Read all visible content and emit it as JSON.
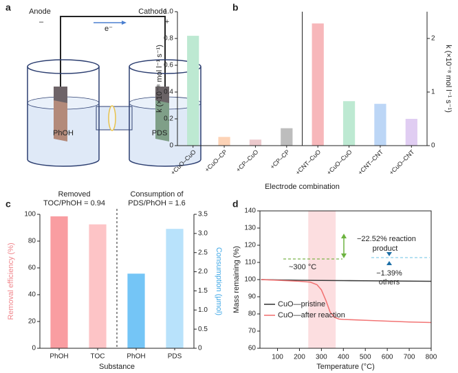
{
  "panels": [
    "a",
    "b",
    "c",
    "d"
  ],
  "diagram": {
    "anode": "Anode",
    "anode_sign": "–",
    "cathode": "Cathode",
    "cathode_sign": "+",
    "electron": "e⁻",
    "left_cell": "PhOH",
    "right_cell": "PDS"
  },
  "chart_data": [
    {
      "type": "bar",
      "ylabel": "k (×10⁻⁸ mol l⁻¹ s⁻¹)",
      "y2label": "k (×10⁻⁸ mol l⁻¹ s⁻¹)",
      "xlabel": "Electrode combination",
      "categories": [
        "+CuO–CuO",
        "+CuO–CP",
        "+CP–CuO",
        "+CP–CP",
        "+CNT–CuO",
        "+CuO–CuO",
        "+CNT–CNT",
        "+CuO–CNT"
      ],
      "series": [
        {
          "colors": [
            "#bde9d2",
            "#fdd3b6",
            "#ecc9cc",
            "#bdbdbd",
            null,
            null,
            null,
            null
          ],
          "values": [
            0.82,
            0.065,
            0.045,
            0.13,
            null,
            null,
            null,
            null
          ]
        },
        {
          "axis": "y2",
          "colors": [
            null,
            null,
            null,
            null,
            "#f7b7ba",
            "#bde9d2",
            "#bcd6f6",
            "#e0cdf2"
          ],
          "values": [
            null,
            null,
            null,
            null,
            2.28,
            0.83,
            0.78,
            0.5
          ]
        }
      ],
      "ylim": [
        0,
        1.0
      ],
      "yticks": [
        0,
        0.2,
        0.4,
        0.6,
        0.8,
        {
          "value": 1.0,
          "label": "1.0"
        }
      ],
      "y2lim": [
        0,
        2.5
      ],
      "y2ticks": [
        0,
        1,
        2
      ]
    },
    {
      "type": "bar",
      "annotations": [
        [
          "Removed",
          "TOC/PhOH = 0.94"
        ],
        [
          "Consumption of",
          "PDS/PhOH = 1.6"
        ]
      ],
      "ylabel": "Removal efficiency (%)",
      "ylabel_color": "#f0868c",
      "y2label": "Consumption (μmol)",
      "y2label_color": "#3ea7e6",
      "xlabel": "Substance",
      "categories": [
        "PhOH",
        "TOC",
        "PhOH",
        "PDS"
      ],
      "series": [
        {
          "colors": [
            "#f99da1",
            "#fdc4c6",
            null,
            null
          ],
          "values": [
            98.5,
            92.5,
            null,
            null
          ]
        },
        {
          "axis": "y2",
          "colors": [
            null,
            null,
            "#74c5f6",
            "#b8e2fb"
          ],
          "values": [
            null,
            null,
            1.95,
            3.12
          ]
        }
      ],
      "ylim": [
        0,
        100
      ],
      "yticks": [
        0,
        20,
        40,
        60,
        80,
        100
      ],
      "y2lim": [
        0,
        3.5
      ],
      "y2ticks": [
        0,
        0.5,
        {
          "value": 1.0,
          "label": "1.0"
        },
        1.5,
        {
          "value": 2.0,
          "label": "2.0"
        },
        2.5,
        {
          "value": 3.0,
          "label": "3.0"
        },
        3.5
      ]
    },
    {
      "type": "line",
      "xlabel": "Temperature (°C)",
      "ylabel": "Mass remaining (%)",
      "annotations": [
        "−22.52% reaction",
        "product",
        "~300 °C",
        "−1.39%",
        "others"
      ],
      "shaded_range": [
        240,
        365
      ],
      "legend": "lower left",
      "series": [
        {
          "name": "CuO—pristine",
          "color": "#3a3a3a",
          "x": [
            25,
            100,
            200,
            300,
            400,
            500,
            600,
            700,
            800
          ],
          "values": [
            100,
            99.8,
            99.6,
            99.5,
            99.4,
            99.3,
            99.2,
            99.1,
            99
          ]
        },
        {
          "name": "CuO—after reaction",
          "color": "#f27474",
          "x": [
            25,
            100,
            200,
            250,
            280,
            300,
            320,
            340,
            360,
            380,
            400,
            500,
            600,
            700,
            800
          ],
          "values": [
            100,
            99.6,
            99,
            98.5,
            97,
            94,
            88,
            81,
            78,
            77,
            76.8,
            76.3,
            75.8,
            75.3,
            75
          ]
        }
      ],
      "xlim": [
        20,
        800
      ],
      "xticks": [
        100,
        200,
        300,
        400,
        500,
        600,
        700,
        800
      ],
      "ylim": [
        60,
        140
      ],
      "yticks": [
        60,
        70,
        80,
        90,
        100,
        110,
        120,
        130,
        140
      ]
    }
  ]
}
